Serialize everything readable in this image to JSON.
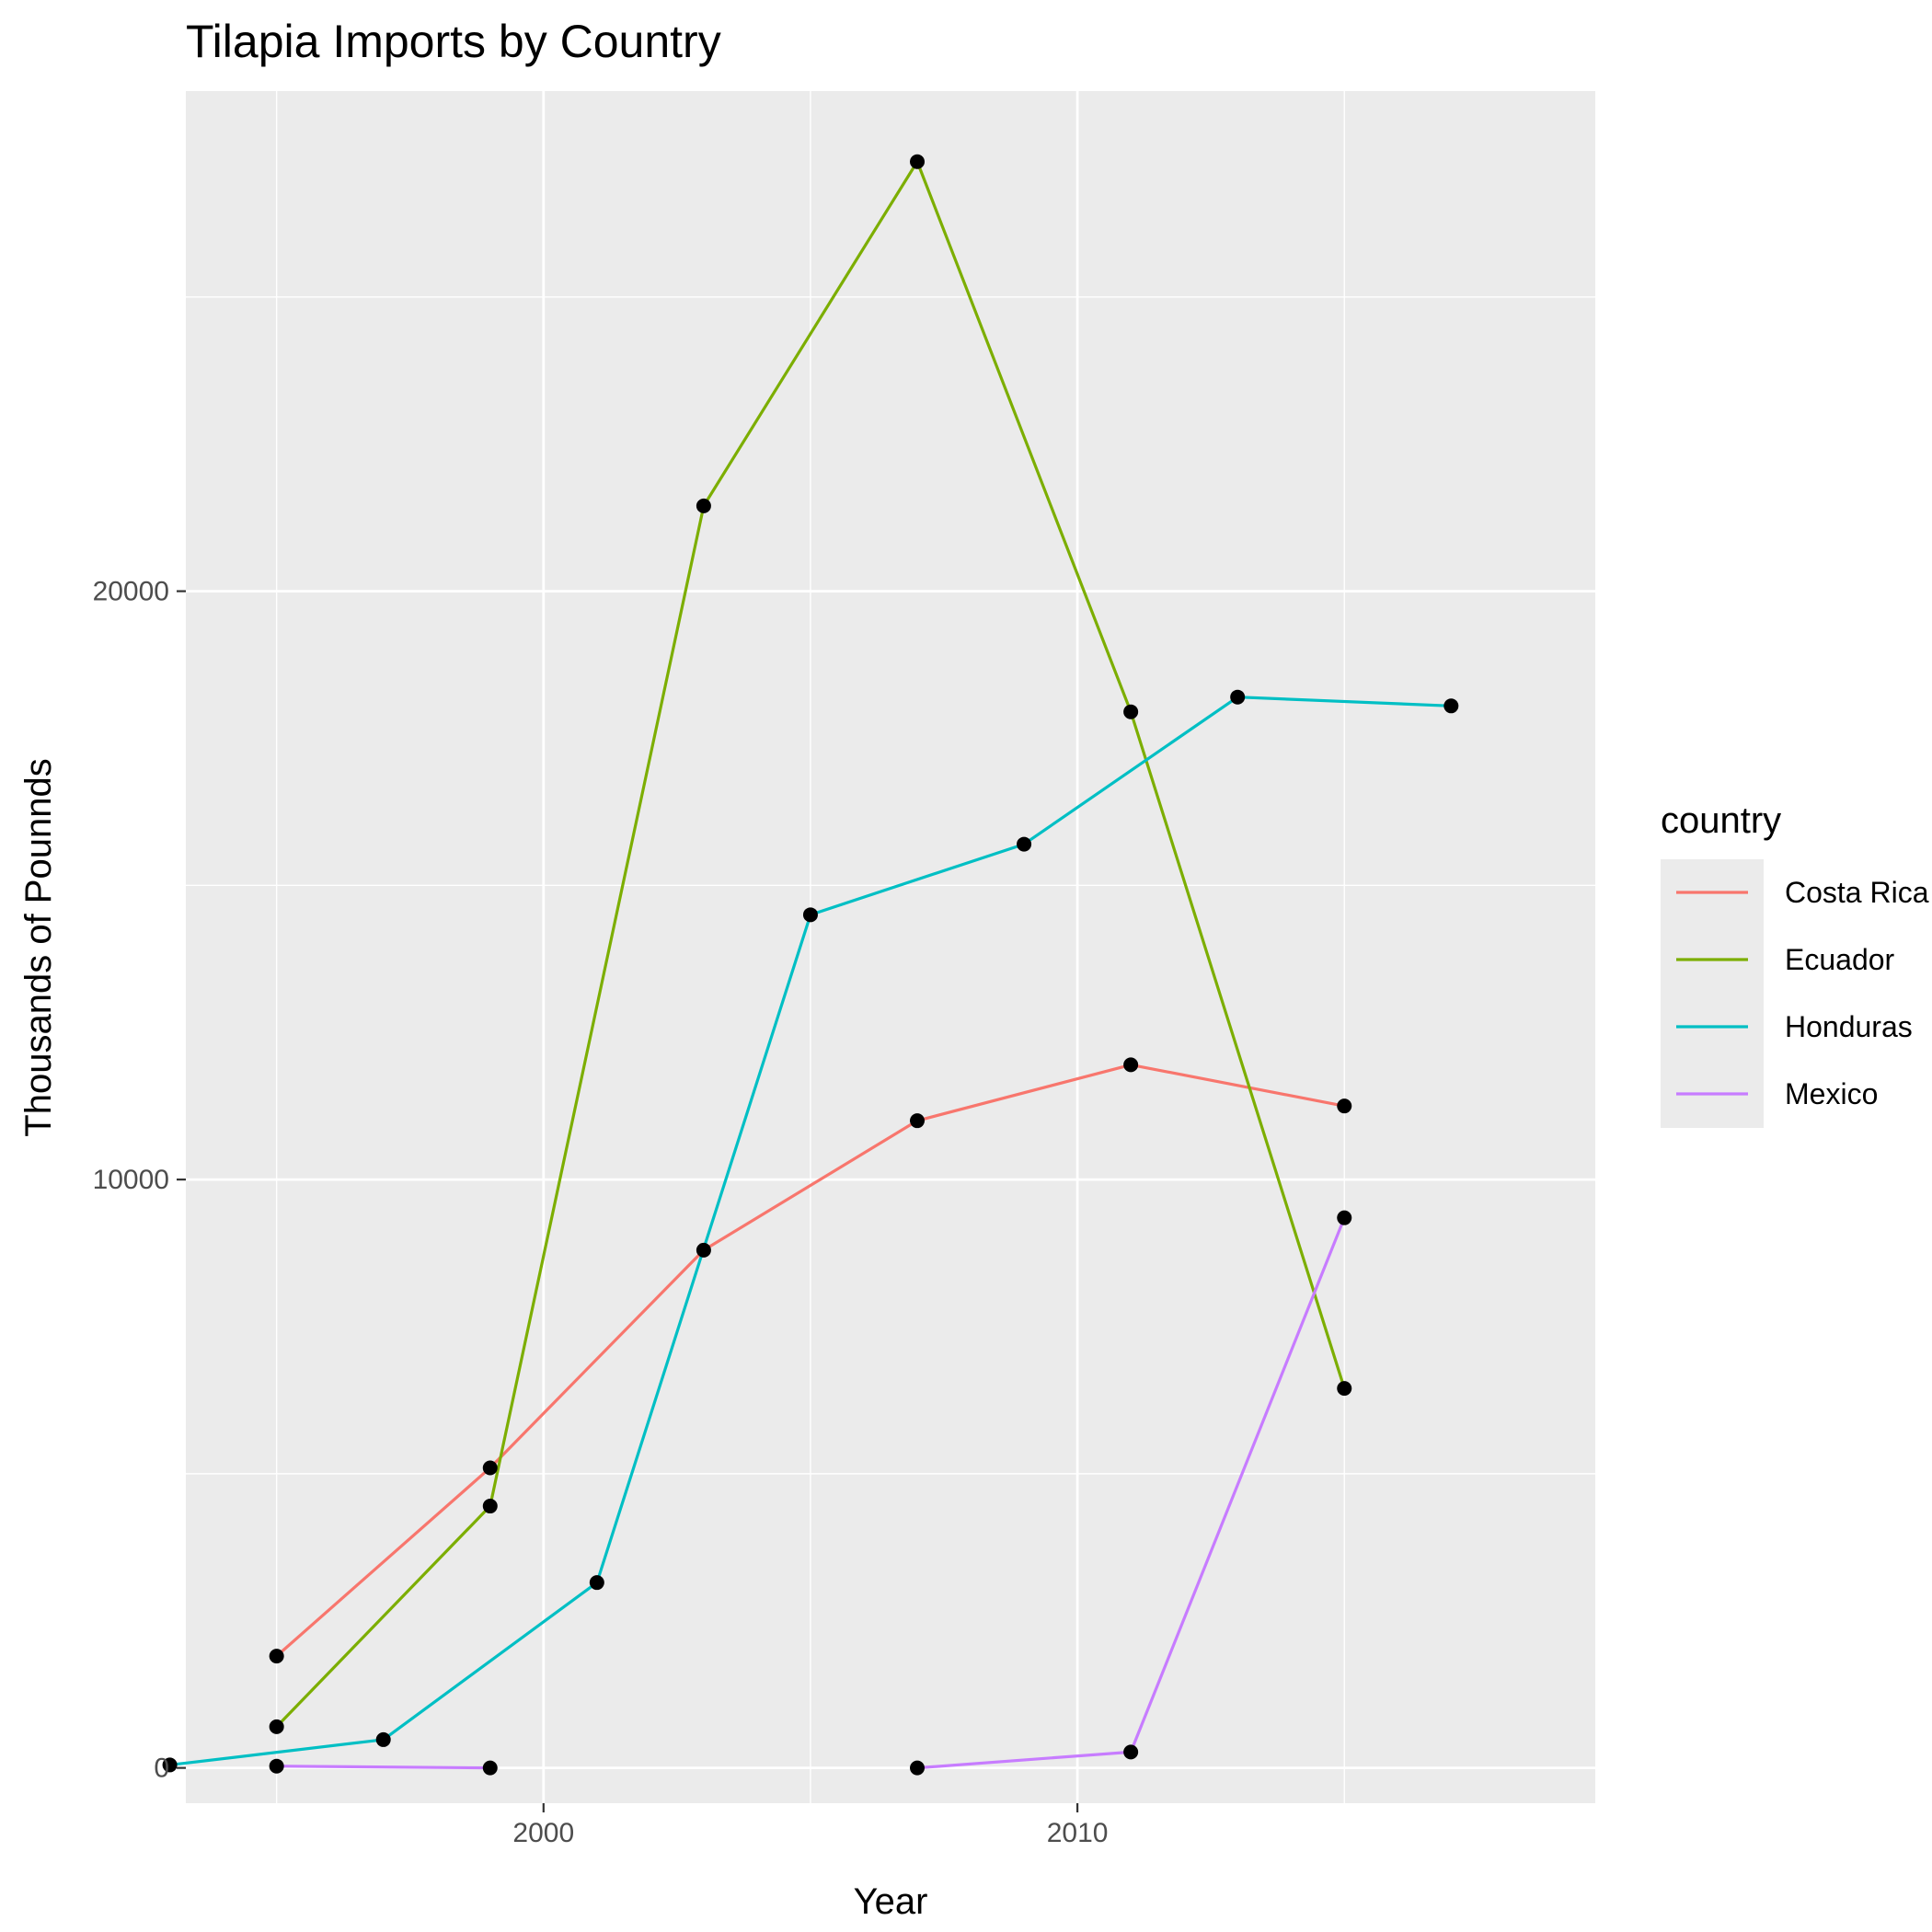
{
  "chart_data": {
    "type": "line",
    "title": "Tilapia Imports by Country",
    "xlabel": "Year",
    "ylabel": "Thousands of Pounnds",
    "xlim": [
      1993.3,
      2019.7
    ],
    "ylim": [
      -600,
      28500
    ],
    "x_ticks": [
      2000,
      2010
    ],
    "x_minor_ticks": [
      1995,
      2005,
      2015
    ],
    "y_ticks": [
      0,
      10000,
      20000
    ],
    "y_minor_ticks": [
      5000,
      15000,
      25000
    ],
    "x_tick_labels": [
      "2000",
      "2010"
    ],
    "y_tick_labels": [
      "0",
      "10000",
      "20000"
    ],
    "grid": true,
    "legend": {
      "title": "country",
      "placement": "right"
    },
    "point_color": "#000000",
    "series": [
      {
        "name": "Costa Rica",
        "color": "#F8766D",
        "x": [
          1995,
          1999,
          2003,
          2007,
          2011,
          2015
        ],
        "y": [
          1900,
          5100,
          8800,
          11000,
          11950,
          11250
        ]
      },
      {
        "name": "Ecuador",
        "color": "#7CAE00",
        "x": [
          1995,
          1999,
          2003,
          2007,
          2011,
          2015
        ],
        "y": [
          700,
          4450,
          21450,
          27300,
          17950,
          6450
        ]
      },
      {
        "name": "Honduras",
        "color": "#00BFC4",
        "x": [
          1993,
          1997,
          2001,
          2005,
          2009,
          2013,
          2017
        ],
        "y": [
          50,
          480,
          3150,
          14500,
          15700,
          18200,
          18050
        ]
      },
      {
        "name": "Mexico",
        "color": "#C77CFF",
        "x": [
          1995,
          1999,
          2007,
          2011,
          2015
        ],
        "y": [
          30,
          0,
          0,
          270,
          9350
        ],
        "segments": [
          [
            0,
            1
          ],
          [
            2,
            4
          ]
        ]
      }
    ]
  }
}
